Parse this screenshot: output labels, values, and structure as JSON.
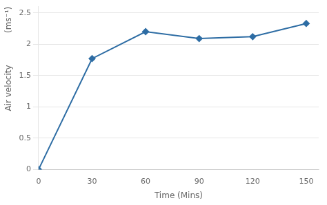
{
  "chart_data": {
    "type": "line",
    "x": [
      0,
      30,
      60,
      90,
      120,
      150
    ],
    "values": [
      0.0,
      1.77,
      2.2,
      2.09,
      2.12,
      2.33
    ],
    "color": "#2E6DA4",
    "marker": "diamond",
    "xlabel": "Time (Mins)",
    "ylabel": "Air velocity",
    "annotation": "(ms⁻¹)",
    "xlim": [
      0,
      157
    ],
    "ylim": [
      0,
      2.6
    ],
    "xticks": [
      0,
      30,
      60,
      90,
      120,
      150
    ],
    "yticks": [
      0,
      0.5,
      1,
      1.5,
      2,
      2.5
    ],
    "grid": "y"
  }
}
